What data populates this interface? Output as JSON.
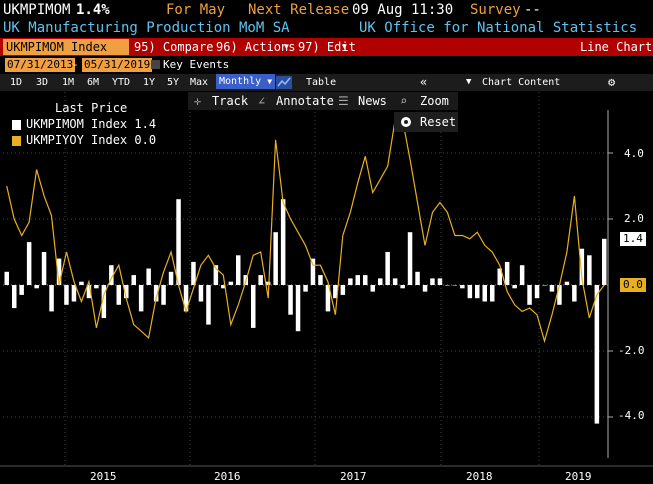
{
  "header": {
    "ticker": "UKMPIMOM",
    "last_value": "1.4%",
    "period": "For May",
    "next_release_label": "Next Release",
    "next_release": "09 Aug 11:30",
    "survey_label": "Survey",
    "survey": "--",
    "description": "UK Manufacturing Production MoM SA",
    "source": "UK Office for National Statistics"
  },
  "toolbar": {
    "ticker_input": "UKMPIMOM Index",
    "compare": "95) Compare",
    "actions": "96) Actions",
    "edit": "97) Edit",
    "chart_type": "Line Chart"
  },
  "range": {
    "start": "07/31/2013",
    "end": "05/31/2019",
    "key_events": "Key Events"
  },
  "periods": {
    "items": [
      "1D",
      "3D",
      "1M",
      "6M",
      "YTD",
      "1Y",
      "5Y",
      "Max"
    ],
    "frequency": "Monthly",
    "table": "Table",
    "chart_content": "Chart Content"
  },
  "tools": {
    "track": "Track",
    "annotate": "Annotate",
    "news": "News",
    "zoom": "Zoom",
    "reset": "Reset"
  },
  "legend": {
    "title": "Last Price",
    "series": [
      {
        "label": "UKMPIMOM Index 1.4",
        "color": "#ffffff"
      },
      {
        "label": "UKMPIYOY Index  0.0",
        "color": "#e8b020"
      }
    ]
  },
  "chart_data": {
    "type": "bar",
    "x_ticks": [
      "2015",
      "2016",
      "2017",
      "2018",
      "2019"
    ],
    "y_ticks": [
      "4.0",
      "2.0",
      "0.0",
      "-2.0",
      "-4.0"
    ],
    "last_value_tags": [
      "1.4",
      "0.0"
    ],
    "ylim": [
      -5,
      5.2
    ],
    "series": [
      {
        "name": "UKMPIMOM Index",
        "type": "bar",
        "color": "#ffffff",
        "values": [
          0.4,
          -0.7,
          -0.3,
          1.3,
          -0.1,
          1.0,
          -0.8,
          0.8,
          -0.6,
          -0.5,
          0.1,
          -0.4,
          -0.1,
          -1.0,
          0.6,
          -0.6,
          -0.4,
          0.3,
          -0.8,
          0.5,
          -0.5,
          -0.6,
          0.4,
          2.6,
          -0.8,
          0.7,
          -0.5,
          -1.2,
          0.6,
          -0.1,
          0.1,
          0.9,
          0.3,
          -1.3,
          0.3,
          0.1,
          1.6,
          2.6,
          -0.9,
          -1.4,
          -0.2,
          0.8,
          0.3,
          -0.8,
          -0.4,
          -0.3,
          0.2,
          0.3,
          0.3,
          -0.2,
          0.2,
          1.0,
          0.2,
          -0.1,
          1.6,
          0.4,
          -0.2,
          0.2,
          0.2,
          0.0,
          0.0,
          -0.1,
          -0.4,
          -0.4,
          -0.5,
          -0.5,
          0.5,
          0.7,
          -0.1,
          0.6,
          -0.6,
          -0.4,
          0.0,
          -0.2,
          -0.6,
          0.1,
          -0.5,
          1.1,
          0.9,
          -4.2,
          1.4
        ]
      },
      {
        "name": "UKMPIYOY Index",
        "type": "line",
        "color": "#e8b020",
        "values": [
          3.0,
          2.0,
          1.5,
          1.9,
          3.5,
          2.7,
          2.1,
          0.0,
          1.0,
          0.1,
          -0.5,
          0.1,
          -1.3,
          -0.3,
          0.2,
          0.6,
          -0.4,
          -1.2,
          -1.4,
          -1.6,
          -0.4,
          0.4,
          1.0,
          0.0,
          -0.8,
          -0.1,
          0.6,
          0.9,
          0.5,
          0.3,
          -1.2,
          -0.6,
          0.1,
          0.9,
          1.0,
          -0.4,
          4.4,
          2.5,
          2.0,
          1.6,
          1.2,
          0.6,
          0.6,
          0.1,
          -0.9,
          1.5,
          2.2,
          3.1,
          3.9,
          2.8,
          3.2,
          3.6,
          5.0,
          5.0,
          3.8,
          2.5,
          1.2,
          2.2,
          2.5,
          2.2,
          1.5,
          1.5,
          1.4,
          1.6,
          1.2,
          1.0,
          0.6,
          -0.2,
          -0.6,
          -0.8,
          -0.7,
          -0.9,
          -1.7,
          -0.9,
          0.0,
          1.0,
          2.7,
          0.2,
          -1.0,
          -0.3,
          0.0
        ]
      }
    ]
  }
}
